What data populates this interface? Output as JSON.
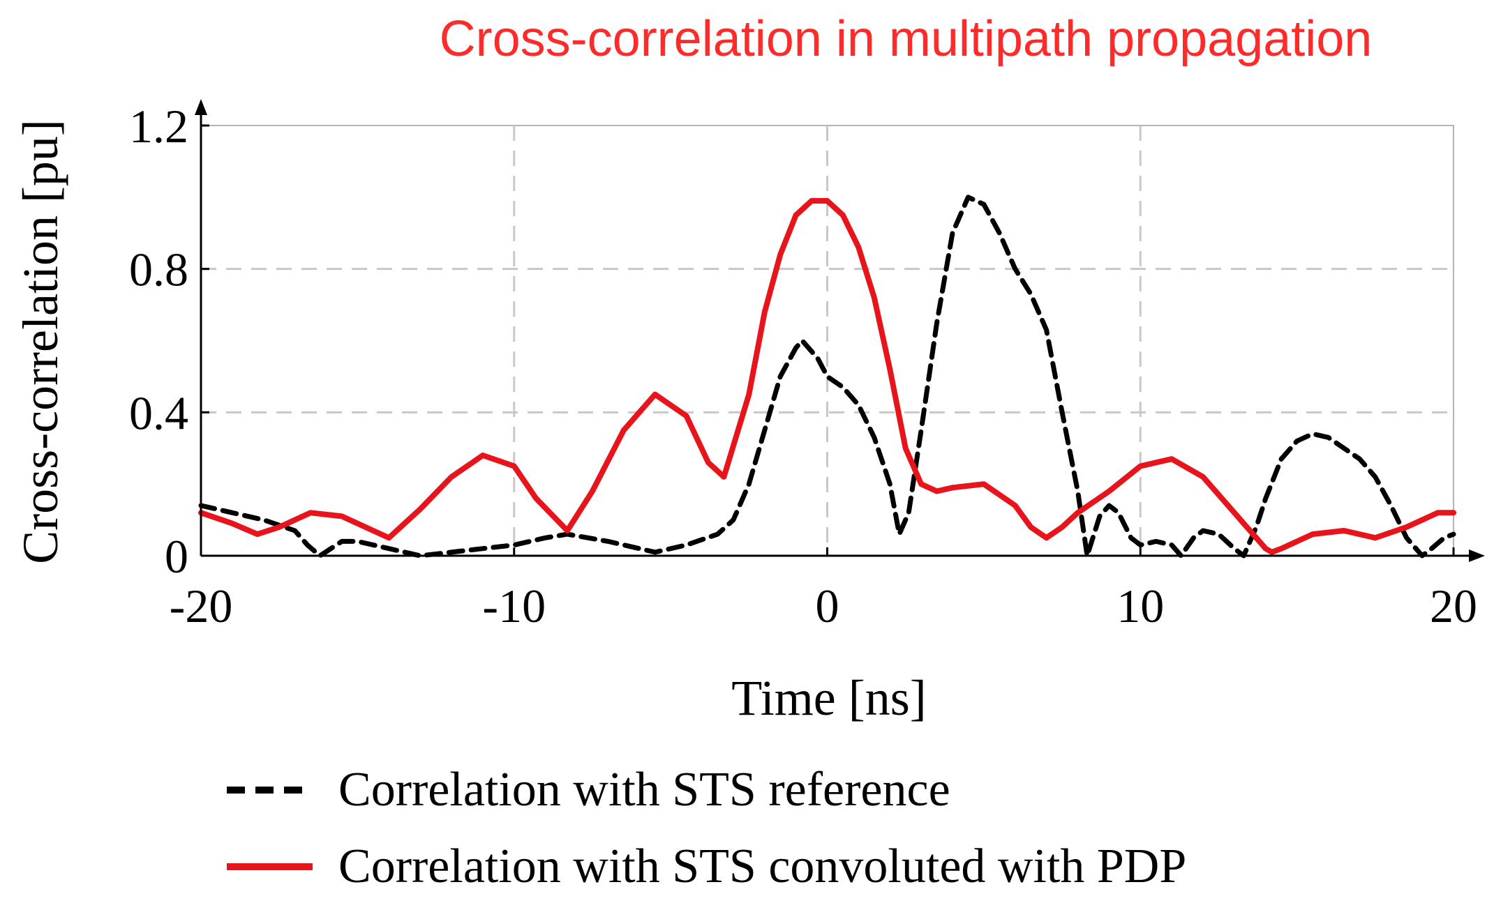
{
  "chart_data": {
    "type": "line",
    "title": "Cross-correlation in multipath propagation",
    "xlabel": "Time [ns]",
    "ylabel": "Cross-correlation [pu]",
    "xlim": [
      -20,
      20
    ],
    "ylim": [
      0,
      1.2
    ],
    "xticks": [
      -20,
      -10,
      0,
      10,
      20
    ],
    "xtick_labels": [
      "-20",
      "-10",
      "0",
      "10",
      "20"
    ],
    "yticks": [
      0,
      0.4,
      0.8,
      1.2
    ],
    "ytick_labels": [
      "0",
      "0.4",
      "0.8",
      "1.2"
    ],
    "grid": true,
    "legend_position": "bottom",
    "colors": {
      "title": "#ff2a2a",
      "ref": "#000000",
      "pdp": "#e8141c",
      "grid": "#c8c8c8",
      "axis": "#000000"
    },
    "series": [
      {
        "name": "Correlation with STS reference",
        "style": "dashed",
        "x": [
          -20,
          -19,
          -18,
          -17,
          -16.6,
          -16.2,
          -15.5,
          -15,
          -14,
          -13,
          -12,
          -11,
          -10,
          -9,
          -8.3,
          -7,
          -6,
          -5.5,
          -4.5,
          -3.5,
          -3,
          -2.5,
          -2,
          -1.5,
          -1,
          -0.8,
          -0.3,
          0,
          0.5,
          1,
          1.5,
          2,
          2.3,
          2.6,
          3,
          3.5,
          4,
          4.5,
          5,
          5.5,
          6,
          6.5,
          7,
          7.5,
          8,
          8.3,
          8.7,
          9,
          9.3,
          9.7,
          10,
          10.5,
          11,
          11.3,
          11.7,
          12,
          12.5,
          13,
          13.3,
          13.7,
          14,
          14.5,
          15,
          15.5,
          16,
          16.5,
          17,
          17.5,
          18,
          18.5,
          19,
          19.3,
          19.7,
          20
        ],
        "y": [
          0.14,
          0.12,
          0.1,
          0.07,
          0.03,
          0.0,
          0.04,
          0.04,
          0.02,
          0.0,
          0.01,
          0.02,
          0.03,
          0.05,
          0.06,
          0.04,
          0.02,
          0.01,
          0.03,
          0.06,
          0.1,
          0.2,
          0.35,
          0.5,
          0.58,
          0.6,
          0.55,
          0.5,
          0.47,
          0.42,
          0.33,
          0.2,
          0.06,
          0.12,
          0.35,
          0.65,
          0.9,
          1.0,
          0.98,
          0.9,
          0.8,
          0.73,
          0.63,
          0.4,
          0.18,
          0.0,
          0.11,
          0.14,
          0.12,
          0.05,
          0.03,
          0.04,
          0.03,
          0.0,
          0.05,
          0.07,
          0.06,
          0.02,
          0.0,
          0.08,
          0.16,
          0.27,
          0.32,
          0.34,
          0.33,
          0.3,
          0.27,
          0.22,
          0.14,
          0.05,
          0.0,
          0.02,
          0.05,
          0.06
        ]
      },
      {
        "name": "Correlation with STS convoluted with PDP",
        "style": "solid",
        "x": [
          -20,
          -19,
          -18.2,
          -17.5,
          -16.5,
          -15.5,
          -14.5,
          -14,
          -13,
          -12,
          -11,
          -10,
          -9.3,
          -8.3,
          -7.5,
          -6.5,
          -5.5,
          -4.5,
          -3.8,
          -3.3,
          -2.5,
          -2,
          -1.5,
          -1,
          -0.5,
          0,
          0.5,
          1,
          1.5,
          2,
          2.5,
          3,
          3.5,
          4,
          5,
          6,
          6.5,
          7,
          7.5,
          8,
          9,
          10,
          11,
          12,
          13,
          13.5,
          14,
          14.2,
          14.5,
          15.5,
          16.5,
          17.5,
          18.5,
          19.5,
          20
        ],
        "y": [
          0.12,
          0.09,
          0.06,
          0.08,
          0.12,
          0.11,
          0.07,
          0.05,
          0.13,
          0.22,
          0.28,
          0.25,
          0.16,
          0.07,
          0.18,
          0.35,
          0.45,
          0.39,
          0.26,
          0.22,
          0.45,
          0.68,
          0.84,
          0.95,
          0.99,
          0.99,
          0.95,
          0.86,
          0.72,
          0.52,
          0.3,
          0.2,
          0.18,
          0.19,
          0.2,
          0.14,
          0.08,
          0.05,
          0.08,
          0.12,
          0.18,
          0.25,
          0.27,
          0.22,
          0.12,
          0.07,
          0.02,
          0.01,
          0.02,
          0.06,
          0.07,
          0.05,
          0.08,
          0.12,
          0.12
        ]
      }
    ]
  }
}
